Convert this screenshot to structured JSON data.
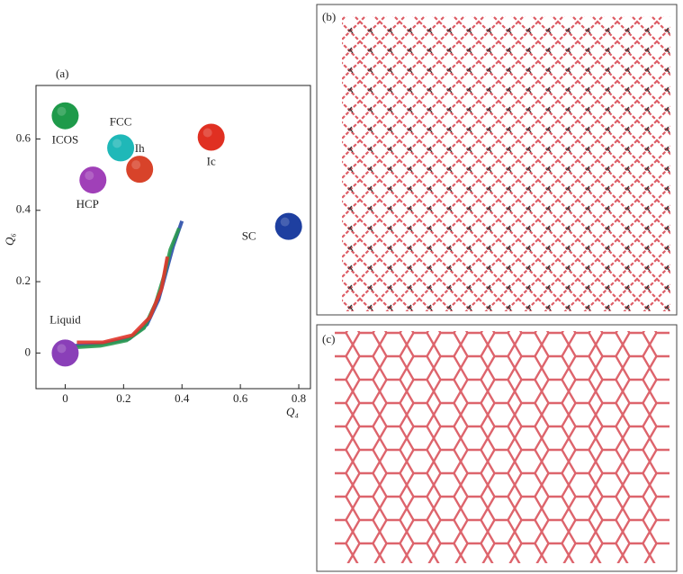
{
  "chart_data": {
    "type": "scatter",
    "panel_label": "(a)",
    "xlabel": "Q₄",
    "ylabel": "Q₆",
    "xlim": [
      -0.1,
      0.84
    ],
    "ylim": [
      -0.1,
      0.75
    ],
    "xticks": [
      0,
      0.2,
      0.4,
      0.6,
      0.8
    ],
    "yticks": [
      0,
      0.2,
      0.4,
      0.6
    ],
    "points": [
      {
        "name": "ICOS",
        "color": "#1e9a4a",
        "x": 0.0,
        "y": 0.665
      },
      {
        "name": "FCC",
        "color": "#1fb8b8",
        "x": 0.19,
        "y": 0.575
      },
      {
        "name": "Ih",
        "color": "#d8432a",
        "x": 0.255,
        "y": 0.515
      },
      {
        "name": "HCP",
        "color": "#a040b8",
        "x": 0.095,
        "y": 0.485
      },
      {
        "name": "Ic",
        "color": "#e03022",
        "x": 0.5,
        "y": 0.605
      },
      {
        "name": "SC",
        "color": "#1e3fa0",
        "x": 0.765,
        "y": 0.355
      },
      {
        "name": "Liquid",
        "color": "#8a3fb8",
        "x": 0.0,
        "y": 0.0
      }
    ],
    "curves": [
      {
        "color": "#2a4ca8",
        "x": [
          0.03,
          0.12,
          0.22,
          0.28,
          0.32,
          0.35,
          0.37,
          0.4
        ],
        "y": [
          0.02,
          0.025,
          0.04,
          0.08,
          0.15,
          0.24,
          0.3,
          0.37
        ]
      },
      {
        "color": "#2a9a50",
        "x": [
          0.02,
          0.12,
          0.21,
          0.27,
          0.31,
          0.34,
          0.36,
          0.39
        ],
        "y": [
          0.015,
          0.02,
          0.035,
          0.07,
          0.14,
          0.22,
          0.29,
          0.35
        ]
      },
      {
        "color": "#e0352a",
        "x": [
          0.04,
          0.13,
          0.23,
          0.29,
          0.33,
          0.35
        ],
        "y": [
          0.03,
          0.03,
          0.05,
          0.1,
          0.18,
          0.27
        ]
      }
    ]
  },
  "panels": [
    {
      "label": "(b)"
    },
    {
      "label": "(c)"
    }
  ]
}
